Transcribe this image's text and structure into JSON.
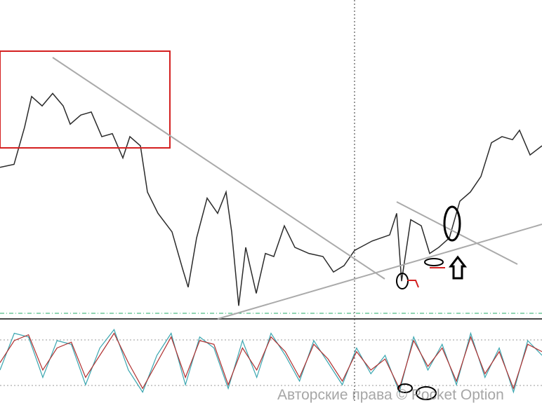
{
  "chart_data": {
    "type": "line",
    "x": [
      0,
      20,
      35,
      45,
      60,
      75,
      90,
      100,
      115,
      130,
      145,
      160,
      175,
      185,
      200,
      210,
      225,
      245,
      260,
      268,
      280,
      295,
      310,
      322,
      330,
      340,
      350,
      365,
      378,
      390,
      405,
      420,
      440,
      460,
      475,
      490,
      505,
      530,
      555,
      565,
      572,
      585,
      600,
      612,
      625,
      640,
      655,
      670,
      685,
      700,
      715,
      730,
      740,
      755,
      772
    ],
    "xlim": [
      0,
      772
    ],
    "ylim": [
      0,
      100
    ],
    "series": [
      {
        "color": "#2b2b2b",
        "values": [
          52.2,
          53.3,
          66.7,
          77.8,
          74.4,
          78.9,
          74.4,
          67.8,
          71.1,
          72.2,
          63.3,
          64.4,
          55.6,
          63.3,
          60,
          43.3,
          35.6,
          28.9,
          15.6,
          8.9,
          26.7,
          41.1,
          35.6,
          43.3,
          28.9,
          2.2,
          23.3,
          6.7,
          21.1,
          20,
          31.1,
          23.3,
          21.1,
          20,
          14.4,
          16.7,
          22.2,
          25.6,
          27.8,
          35.6,
          11.1,
          33.3,
          31.1,
          21.1,
          23.3,
          26.7,
          40,
          43.3,
          48.9,
          61.1,
          63.3,
          62.2,
          65.6,
          56.7,
          60
        ]
      }
    ],
    "oscillator": {
      "ylim": [
        0,
        100
      ],
      "series": [
        {
          "color": "#3aa6b0",
          "values": [
            40,
            90,
            85,
            30,
            80,
            75,
            20,
            70,
            95,
            40,
            10,
            60,
            90,
            20,
            85,
            70,
            15,
            80,
            30,
            90,
            60,
            25,
            80,
            50,
            20,
            70,
            35,
            60,
            10,
            85,
            40,
            75,
            20,
            90,
            30,
            70,
            10,
            80,
            60
          ]
        },
        {
          "color": "#b03030",
          "values": [
            50,
            80,
            88,
            40,
            70,
            78,
            30,
            60,
            90,
            50,
            15,
            50,
            85,
            30,
            80,
            75,
            20,
            70,
            40,
            85,
            65,
            30,
            75,
            55,
            25,
            65,
            40,
            55,
            15,
            80,
            45,
            70,
            25,
            85,
            35,
            65,
            15,
            75,
            65
          ]
        }
      ]
    },
    "watermark": "Авторские права © Pocket Option"
  }
}
